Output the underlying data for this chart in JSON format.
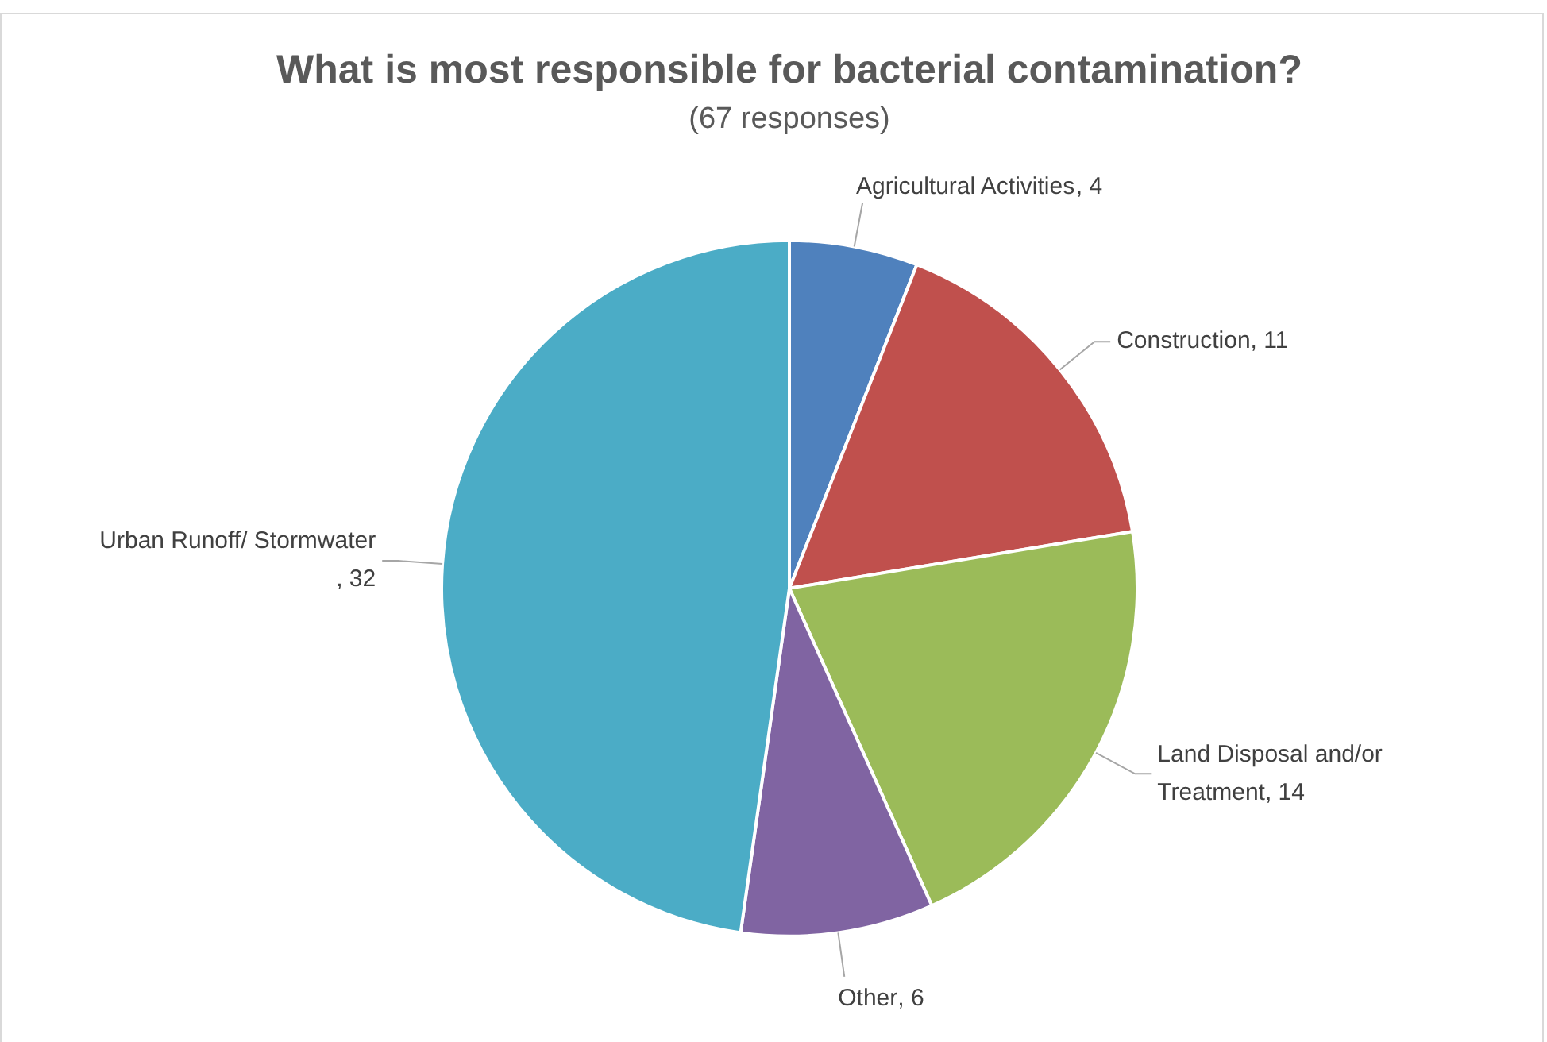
{
  "chart_data": {
    "type": "pie",
    "title": "What is most responsible for bacterial contamination?",
    "subtitle": "(67 responses)",
    "categories": [
      "Agricultural Activities",
      "Construction",
      "Land Disposal and/or Treatment",
      "Other",
      "Urban Runoff/ Stormwater"
    ],
    "values": [
      4,
      11,
      14,
      6,
      32
    ],
    "colors": [
      "#4f81bd",
      "#c0504d",
      "#9bbb59",
      "#8064a2",
      "#4bacc6"
    ],
    "value_labels": [
      ", 4",
      ", 11",
      ", 14",
      ", 6",
      ", 32"
    ],
    "legend": false
  }
}
